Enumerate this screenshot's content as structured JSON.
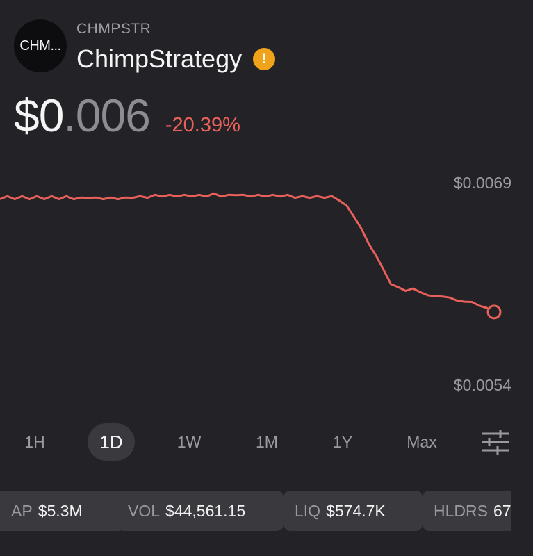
{
  "token": {
    "logo_text": "CHM...",
    "ticker": "CHMPSTR",
    "name": "ChimpStrategy",
    "warning_icon": "warning-icon",
    "warning_symbol": "!",
    "warning_color": "#f0a21a"
  },
  "price": {
    "main": "$0",
    "decimals": ".006",
    "change": "-20.39%",
    "change_color": "#e8605a"
  },
  "chart_data": {
    "type": "line",
    "x_range": "1D",
    "y_high_label": "$0.0069",
    "y_low_label": "$0.0054",
    "ylim": [
      0.0054,
      0.0069
    ],
    "line_color": "#e8605a",
    "series": [
      {
        "values": [
          0.00678,
          0.00679,
          0.00678,
          0.00679,
          0.00678,
          0.00679,
          0.00678,
          0.00679,
          0.00678,
          0.00679,
          0.00678,
          0.00678,
          0.00679,
          0.00678,
          0.00678,
          0.00678,
          0.00678,
          0.00678,
          0.00679,
          0.00679,
          0.00679,
          0.0068,
          0.0068,
          0.0068,
          0.0068,
          0.0068,
          0.0068,
          0.0068,
          0.0068,
          0.00681,
          0.0068,
          0.0068,
          0.00681,
          0.0068,
          0.0068,
          0.0068,
          0.0068,
          0.0068,
          0.0068,
          0.0068,
          0.00679,
          0.00679,
          0.00679,
          0.00679,
          0.00679,
          0.00679,
          0.00677,
          0.00672,
          0.00665,
          0.00655,
          0.00645,
          0.00635,
          0.00626,
          0.00614,
          0.00613,
          0.00609,
          0.00612,
          0.00608,
          0.00607,
          0.00605,
          0.00606,
          0.00604,
          0.00603,
          0.00601,
          0.00602,
          0.00598,
          0.00597,
          0.00594
        ]
      }
    ],
    "end_marker": true
  },
  "ranges": {
    "items": [
      "1H",
      "1D",
      "1W",
      "1M",
      "1Y",
      "Max"
    ],
    "active": "1D",
    "settings_icon": "sliders-icon"
  },
  "stats": [
    {
      "key": "AP",
      "value": "$5.3M"
    },
    {
      "key": "VOL",
      "value": "$44,561.15"
    },
    {
      "key": "LIQ",
      "value": "$574.7K"
    },
    {
      "key": "HLDRS",
      "value": "67"
    }
  ]
}
